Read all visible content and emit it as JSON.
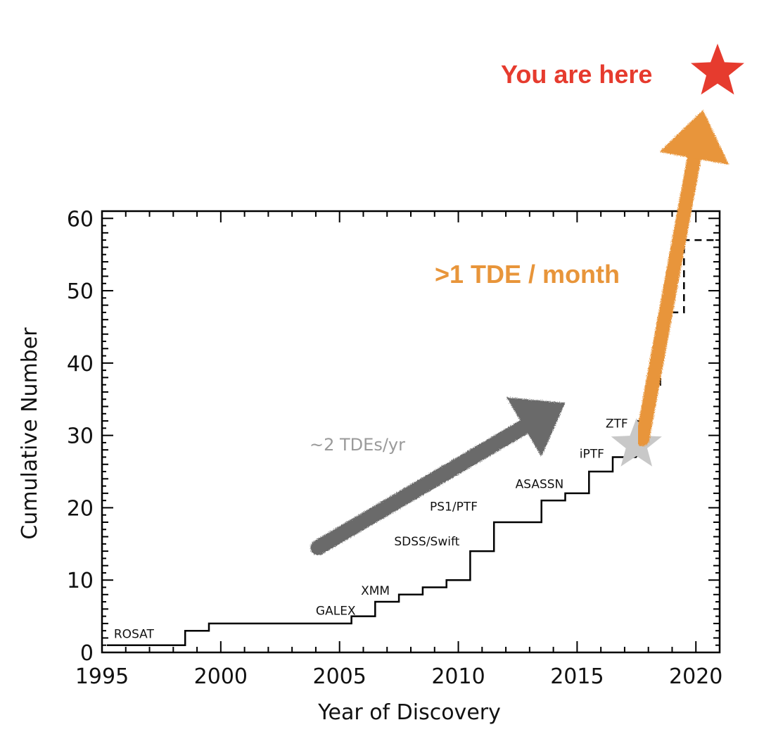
{
  "chart_data": {
    "type": "line",
    "title": "",
    "xlabel": "Year of Discovery",
    "ylabel": "Cumulative Number",
    "xlim": [
      1995,
      2021
    ],
    "ylim": [
      0,
      61
    ],
    "x_ticks": [
      1995,
      2000,
      2005,
      2010,
      2015,
      2020
    ],
    "y_ticks": [
      0,
      10,
      20,
      30,
      40,
      50,
      60
    ],
    "grid": false,
    "series": [
      {
        "style": "solid",
        "color": "#000000",
        "x": [
          1995.2,
          1998.5,
          1998.5,
          1999.5,
          1999.5,
          2005.5,
          2005.5,
          2006.5,
          2006.5,
          2007.5,
          2007.5,
          2008.5,
          2008.5,
          2009.5,
          2009.5,
          2010.5,
          2010.5,
          2011.5,
          2011.5,
          2013.5,
          2013.5,
          2014.5,
          2014.5,
          2015.5,
          2015.5,
          2016.5,
          2016.5,
          2017.5
        ],
        "y": [
          1,
          1,
          3,
          3,
          4,
          4,
          5,
          5,
          7,
          7,
          8,
          8,
          9,
          9,
          10,
          10,
          14,
          14,
          18,
          18,
          21,
          21,
          22,
          22,
          25,
          25,
          27,
          27
        ]
      },
      {
        "style": "dashed",
        "color": "#000000",
        "x": [
          2017.5,
          2017.5,
          2018,
          2018,
          2018.5,
          2018.5,
          2019,
          2019,
          2019.5,
          2019.5,
          2020,
          2020,
          2021
        ],
        "y": [
          27,
          32,
          32,
          37,
          37,
          47,
          47,
          47,
          47,
          57,
          57,
          57,
          57
        ]
      }
    ],
    "labels": [
      {
        "text": "ROSAT",
        "x": 1995.5,
        "y": 2
      },
      {
        "text": "GALEX",
        "x": 2004,
        "y": 5.2
      },
      {
        "text": "XMM",
        "x": 2005.9,
        "y": 8
      },
      {
        "text": "SDSS/Swift",
        "x": 2007.3,
        "y": 14.8
      },
      {
        "text": "PS1/PTF",
        "x": 2008.8,
        "y": 19.6
      },
      {
        "text": "ASASSN",
        "x": 2012.4,
        "y": 22.7
      },
      {
        "text": "iPTF",
        "x": 2015.1,
        "y": 26.9
      },
      {
        "text": "ZTF",
        "x": 2016.2,
        "y": 31.1
      }
    ],
    "annotations": [
      {
        "text": "~2 TDEs/yr",
        "color": "#9a9a9a",
        "arrow_color": "#6b6b6b",
        "from": [
          2004.1,
          14.5
        ],
        "to": [
          2014.5,
          34.5
        ]
      },
      {
        "text": ">1 TDE / month",
        "color": "#e8953a",
        "arrow_color": "#e8953a",
        "from": [
          2017.75,
          29.5
        ],
        "to": [
          2020.3,
          75
        ]
      },
      {
        "text": "You are here",
        "color": "#e63b2e"
      }
    ],
    "markers": [
      {
        "shape": "star",
        "color": "#c8c8c8",
        "x": 2017.5,
        "y": 28.7
      },
      {
        "shape": "star",
        "color": "#e63b2e"
      }
    ]
  }
}
